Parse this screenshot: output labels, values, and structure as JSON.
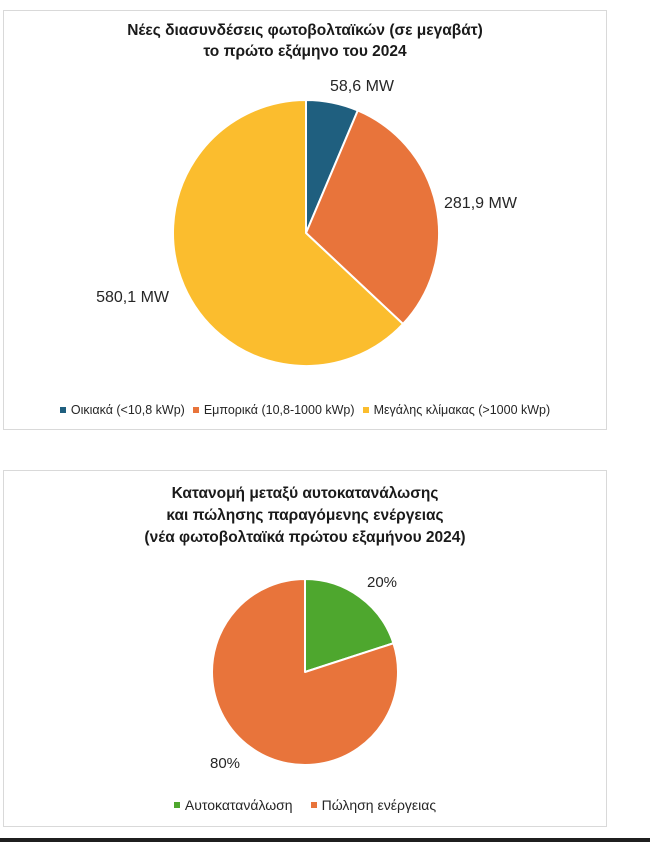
{
  "chart_data": [
    {
      "type": "pie",
      "title_line1": "Νέες διασυνδέσεις φωτοβολταϊκών (σε μεγαβάτ)",
      "title_line2": "το πρώτο εξάμηνο του 2024",
      "categories": [
        "Οικιακά (<10,8 kWp)",
        "Εμπορικά (10,8-1000 kWp)",
        "Μεγάλης κλίμακας (>1000 kWp)"
      ],
      "values": [
        58.6,
        281.9,
        580.1
      ],
      "data_labels": [
        "58,6 MW",
        "281,9 MW",
        "580,1 MW"
      ],
      "colors": [
        "#1f5f7f",
        "#e8743b",
        "#fbbd2e"
      ],
      "legend_position": "bottom"
    },
    {
      "type": "pie",
      "title_line1": "Κατανομή μεταξύ αυτοκατανάλωσης",
      "title_line2": "και πώλησης παραγόμενης ενέργειας",
      "title_line3": "(νέα φωτοβολταϊκά πρώτου εξαμήνου 2024)",
      "categories": [
        "Αυτοκατανάλωση",
        "Πώληση ενέργειας"
      ],
      "values": [
        20,
        80
      ],
      "data_labels": [
        "20%",
        "80%"
      ],
      "colors": [
        "#4ea72e",
        "#e8743b"
      ],
      "legend_position": "bottom"
    }
  ]
}
